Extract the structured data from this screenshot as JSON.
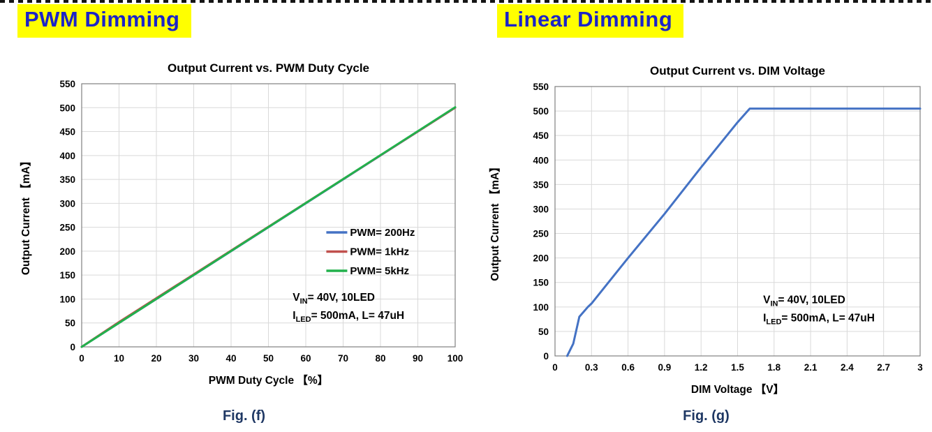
{
  "panels": [
    {
      "header": "PWM Dimming",
      "caption": "Fig. (f)"
    },
    {
      "header": "Linear Dimming",
      "caption": "Fig. (g)"
    }
  ],
  "colors": {
    "badge_bg": "#FFFF00",
    "badge_text": "#1C24C8",
    "caption_text": "#1F3864",
    "grid": "#D9D9D9",
    "plot_border": "#808080"
  },
  "chart_data": [
    {
      "type": "line",
      "title": "Output Current vs. PWM Duty Cycle",
      "xlabel": "PWM Duty Cycle 【%】",
      "ylabel": "Output Current 【mA】",
      "xlim": [
        0,
        100
      ],
      "ylim": [
        0,
        550
      ],
      "xticks": [
        0,
        10,
        20,
        30,
        40,
        50,
        60,
        70,
        80,
        90,
        100
      ],
      "yticks": [
        0,
        50,
        100,
        150,
        200,
        250,
        300,
        350,
        400,
        450,
        500,
        550
      ],
      "grid": true,
      "legend_position": "center-right-inside",
      "series": [
        {
          "name": "PWM= 200Hz",
          "color": "#4472C4",
          "points": [
            [
              0,
              0
            ],
            [
              100,
              500
            ]
          ]
        },
        {
          "name": "PWM= 1kHz",
          "color": "#C0504D",
          "points": [
            [
              0,
              0
            ],
            [
              10,
              52
            ],
            [
              100,
              500
            ]
          ]
        },
        {
          "name": "PWM= 5kHz",
          "color": "#22B14C",
          "points": [
            [
              0,
              0
            ],
            [
              100,
              501
            ]
          ]
        }
      ],
      "annotation": {
        "lines": [
          "V_{IN}= 40V, 10LED",
          "I_{LED}= 500mA, L= 47uH"
        ]
      }
    },
    {
      "type": "line",
      "title": "Output Current vs. DIM Voltage",
      "xlabel": "DIM Voltage 【V】",
      "ylabel": "Output Current 【mA】",
      "xlim": [
        0,
        3
      ],
      "ylim": [
        0,
        550
      ],
      "xticks": [
        0,
        0.3,
        0.6,
        0.9,
        1.2,
        1.5,
        1.8,
        2.1,
        2.4,
        2.7,
        3
      ],
      "yticks": [
        0,
        50,
        100,
        150,
        200,
        250,
        300,
        350,
        400,
        450,
        500,
        550
      ],
      "grid": true,
      "legend_position": "none",
      "series": [
        {
          "name": "Output Current",
          "color": "#4472C4",
          "points": [
            [
              0.1,
              0
            ],
            [
              0.15,
              25
            ],
            [
              0.2,
              80
            ],
            [
              0.27,
              100
            ],
            [
              0.3,
              107
            ],
            [
              0.6,
              200
            ],
            [
              0.9,
              290
            ],
            [
              1.2,
              385
            ],
            [
              1.5,
              477
            ],
            [
              1.6,
              505
            ],
            [
              3,
              505
            ]
          ]
        }
      ],
      "annotation": {
        "lines": [
          "V_{IN}= 40V, 10LED",
          "I_{LED}= 500mA, L= 47uH"
        ]
      }
    }
  ]
}
